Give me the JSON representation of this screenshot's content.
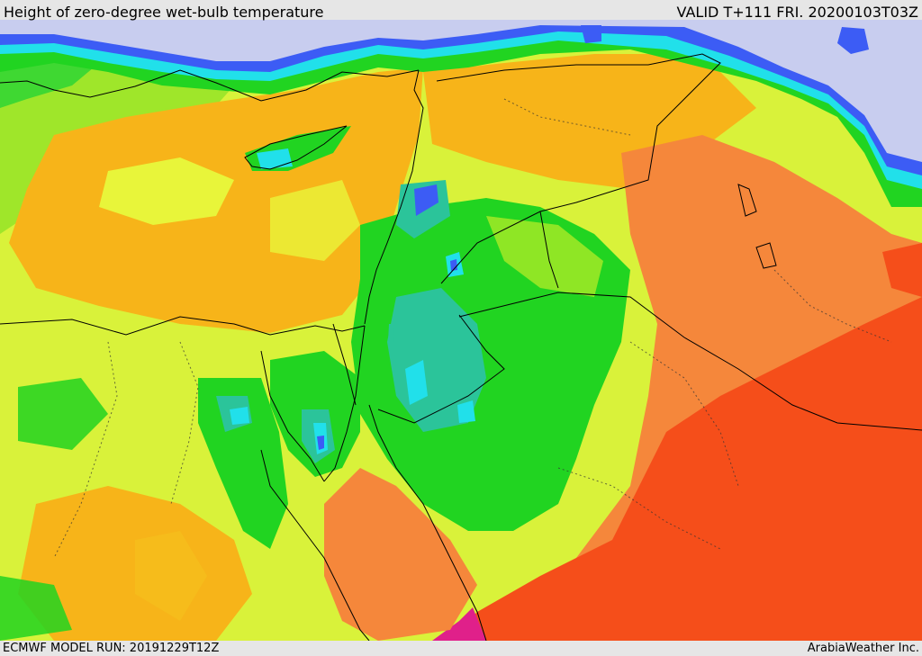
{
  "header": {
    "title": "Height of zero-degree wet-bulb temperature",
    "valid": "VALID T+111 FRI. 20200103T03Z"
  },
  "footer": {
    "model_run": "ECMWF MODEL RUN: 20191229T12Z",
    "brand": "ArabiaWeather Inc."
  },
  "palette": {
    "sea_ice": "#c8cdef",
    "blue": "#3c5cf5",
    "cyan": "#21e0ea",
    "teal": "#2bc49a",
    "green": "#21d421",
    "lime": "#8fe625",
    "yellow": "#e8f53a",
    "gold": "#f7b419",
    "orange": "#f5873b",
    "red": "#f54e1a",
    "magenta": "#e0208a"
  }
}
